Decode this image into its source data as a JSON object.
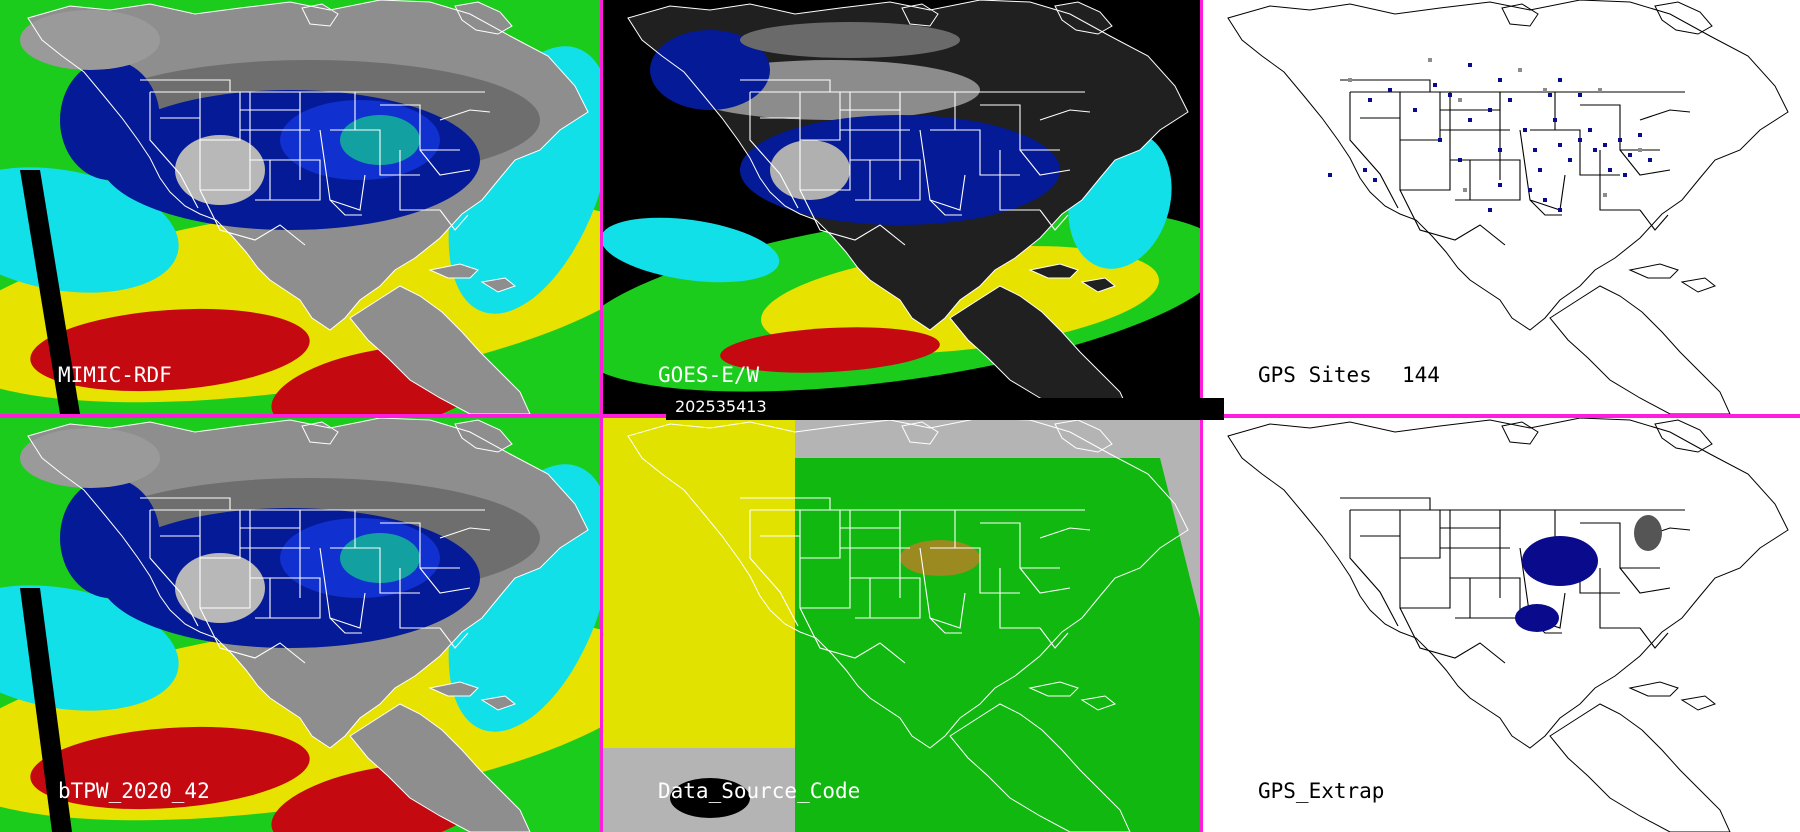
{
  "panels": [
    {
      "id": "mimic",
      "label": "MIMIC-RDF",
      "product": "moisture"
    },
    {
      "id": "goes",
      "label": "GOES-E/W",
      "product": "moisture-clouds"
    },
    {
      "id": "gps",
      "label": "GPS Sites",
      "count": "144",
      "product": "gps-sites"
    },
    {
      "id": "btpw",
      "label": "bTPW_2020_42",
      "product": "moisture"
    },
    {
      "id": "dsc",
      "label": "Data_Source_Code",
      "product": "source-code"
    },
    {
      "id": "extrap",
      "label": "GPS_Extrap",
      "product": "gps-extrap"
    }
  ],
  "timestamp": "202535413",
  "colors": {
    "divider": "#ff1cdc",
    "ocean_red": "#c40a10",
    "ocean_yellow": "#e8e200",
    "ocean_green": "#1ccc1c",
    "ocean_cyan": "#12e0e8",
    "moisture_blue": "#041a96",
    "gray": "#a0a0a0",
    "source_yellow": "#e2e200",
    "source_green": "#10b810",
    "source_olive": "#9a8a20",
    "source_gray": "#b4b4b4",
    "site_blue": "#0a0a8c",
    "site_gray": "#8c8c8c"
  }
}
